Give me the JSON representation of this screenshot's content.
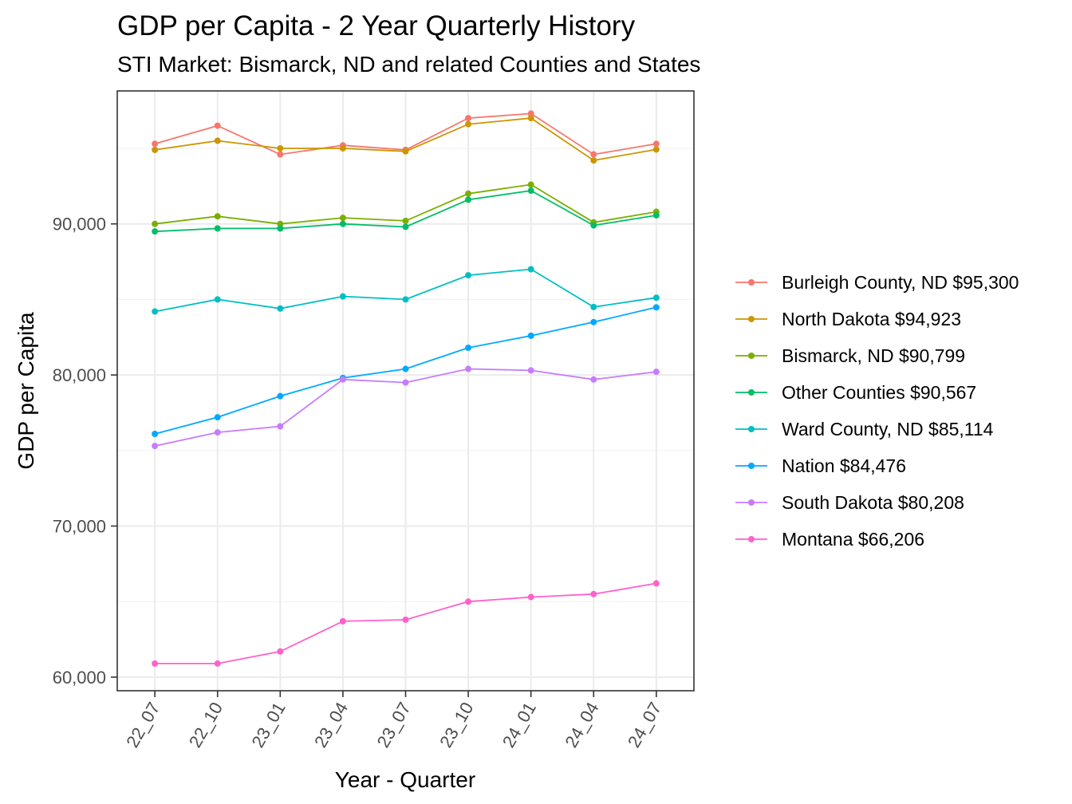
{
  "chart_data": {
    "type": "line",
    "title": "GDP per Capita - 2 Year Quarterly History",
    "subtitle": "STI Market: Bismarck, ND and related Counties and States",
    "xlabel": "Year - Quarter",
    "ylabel": "GDP per Capita",
    "categories": [
      "22_07",
      "22_10",
      "23_01",
      "23_04",
      "23_07",
      "23_10",
      "24_01",
      "24_04",
      "24_07"
    ],
    "y_ticks": [
      60000,
      70000,
      80000,
      90000
    ],
    "y_tick_labels": [
      "60,000",
      "70,000",
      "80,000",
      "90,000"
    ],
    "ylim": [
      59100,
      98800
    ],
    "grid": true,
    "legend_position": "right",
    "series": [
      {
        "name": "Burleigh County, ND $95,300",
        "color": "#F8766D",
        "values": [
          95300,
          96500,
          94600,
          95200,
          94900,
          97000,
          97300,
          94600,
          95300
        ]
      },
      {
        "name": "North Dakota $94,923",
        "color": "#CD9600",
        "values": [
          94900,
          95500,
          95000,
          95000,
          94800,
          96600,
          97000,
          94200,
          94923
        ]
      },
      {
        "name": "Bismarck, ND $90,799",
        "color": "#7CAE00",
        "values": [
          90000,
          90500,
          90000,
          90400,
          90200,
          92000,
          92600,
          90100,
          90799
        ]
      },
      {
        "name": "Other Counties $90,567",
        "color": "#00BE67",
        "values": [
          89500,
          89700,
          89700,
          90000,
          89800,
          91600,
          92200,
          89900,
          90567
        ]
      },
      {
        "name": "Ward County, ND $85,114",
        "color": "#00BFC4",
        "values": [
          84200,
          85000,
          84400,
          85200,
          85000,
          86600,
          87000,
          84500,
          85114
        ]
      },
      {
        "name": "Nation $84,476",
        "color": "#00A9FF",
        "values": [
          76100,
          77200,
          78600,
          79800,
          80400,
          81800,
          82600,
          83500,
          84476
        ]
      },
      {
        "name": "South Dakota $80,208",
        "color": "#C77CFF",
        "values": [
          75300,
          76200,
          76600,
          79700,
          79500,
          80400,
          80300,
          79700,
          80208
        ]
      },
      {
        "name": "Montana $66,206",
        "color": "#FF61CC",
        "values": [
          60900,
          60900,
          61700,
          63700,
          63800,
          65000,
          65300,
          65500,
          66206
        ]
      }
    ]
  }
}
